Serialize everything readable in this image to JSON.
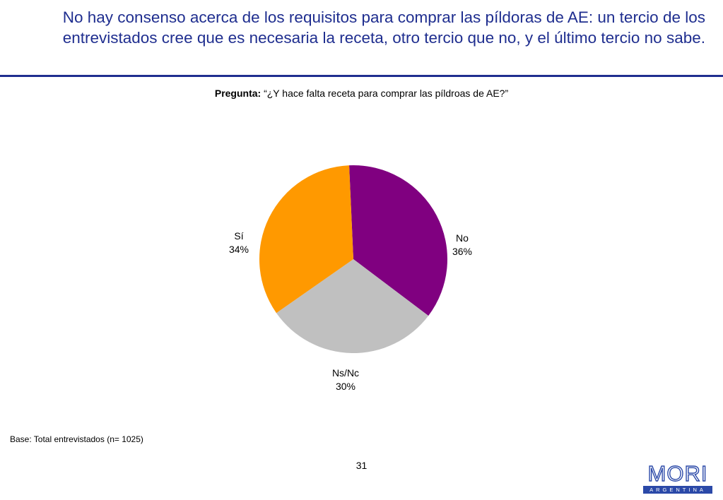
{
  "header": {
    "title": "No hay consenso acerca de los requisitos para comprar las píldoras de AE: un tercio de los entrevistados cree que es necesaria la receta, otro tercio que no, y el último tercio no sabe."
  },
  "question": {
    "label": "Pregunta:",
    "text": "“¿Y hace falta receta para comprar las píldroas de AE?”"
  },
  "chart_data": {
    "type": "pie",
    "slices": [
      {
        "label": "No",
        "value": 36,
        "value_label": "36%",
        "color": "#800080"
      },
      {
        "label": "Ns/Nc",
        "value": 30,
        "value_label": "30%",
        "color": "#c0c0c0"
      },
      {
        "label": "Sí",
        "value": 34,
        "value_label": "34%",
        "color": "#ff9900"
      }
    ],
    "start": "12 o'clock, clockwise",
    "legend": "none"
  },
  "footer": {
    "base": "Base: Total entrevistados (n= 1025)",
    "page_number": "31",
    "logo_word": "MORI",
    "logo_sub": "ARGENTINA"
  }
}
